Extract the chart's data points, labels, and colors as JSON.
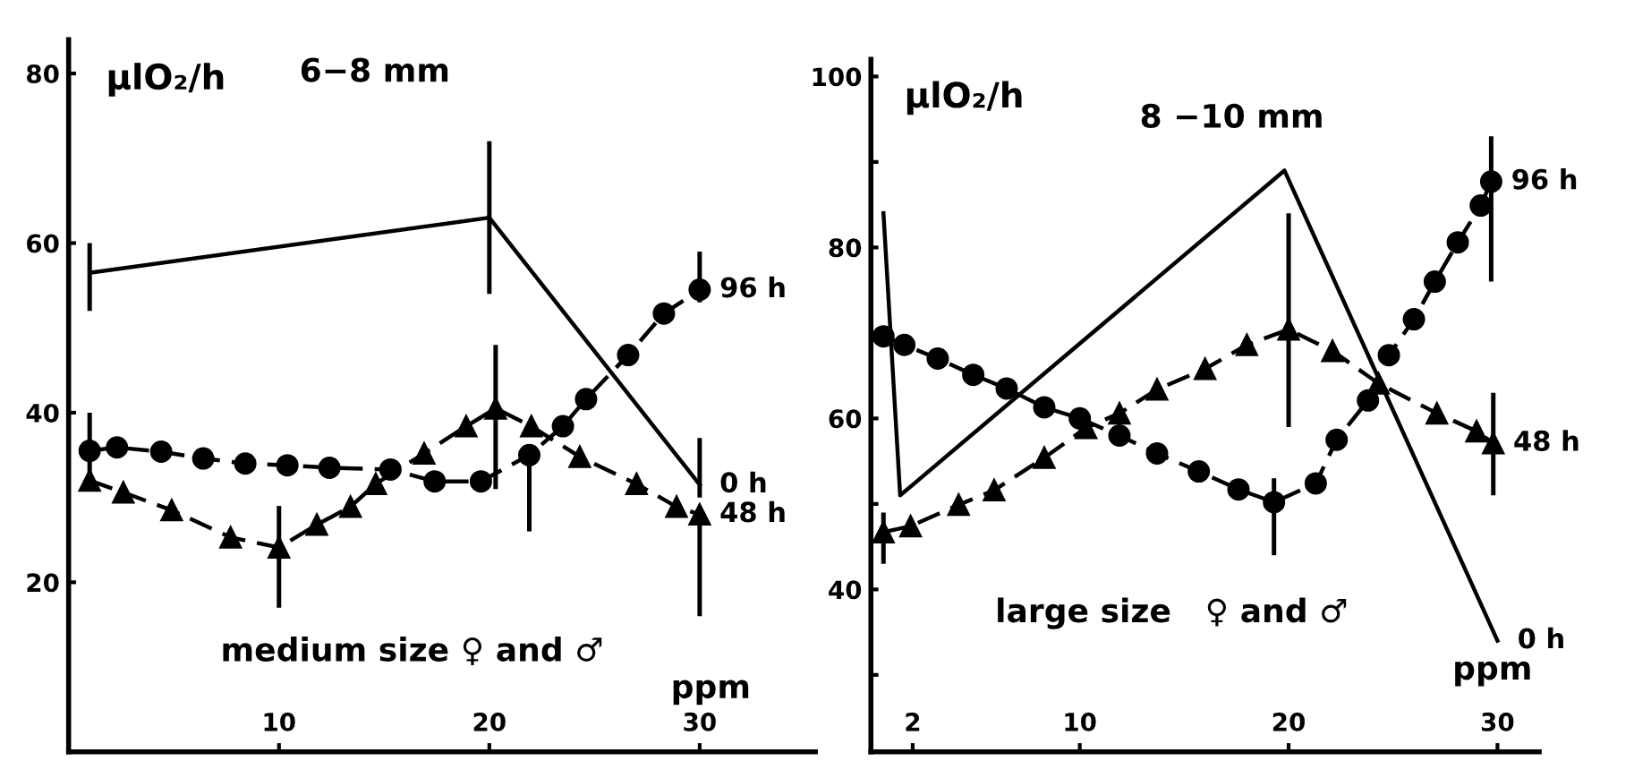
{
  "chart_data": [
    {
      "type": "line",
      "title": "6−8 mm",
      "ylabel": "µlO₂/h",
      "xlabel": "ppm",
      "annotations": [
        "medium size ♀ and ♂"
      ],
      "xlim": [
        0,
        35.5
      ],
      "ylim": [
        0,
        84
      ],
      "xticks": [
        10,
        20,
        30
      ],
      "yticks": [
        20,
        40,
        60,
        80
      ],
      "grid": false,
      "legend": false,
      "series": [
        {
          "name": "0 h",
          "color": "#000000",
          "marker": "none",
          "line_style": "solid",
          "x": [
            1,
            20,
            30
          ],
          "values": [
            56.5,
            63,
            31.5
          ],
          "errors": [
            [
              52,
              60
            ],
            [
              54,
              72
            ],
            [
              30,
              37
            ]
          ]
        },
        {
          "name": "96 h",
          "color": "#000000",
          "marker": "circle",
          "line_style": "dashed",
          "x": [
            1,
            2.3,
            4.4,
            6.4,
            8.4,
            10.4,
            12.4,
            15.3,
            17.4,
            19.6,
            21.9,
            23.5,
            24.6,
            26.6,
            28.3,
            30
          ],
          "values": [
            35.5,
            35.9,
            35.4,
            34.6,
            34,
            33.8,
            33.5,
            33.3,
            31.9,
            31.9,
            35,
            38.4,
            41.6,
            46.8,
            51.7,
            54.5
          ],
          "errors": [
            [
              32,
              40
            ],
            null,
            null,
            null,
            null,
            null,
            null,
            null,
            null,
            null,
            [
              26,
              36
            ],
            null,
            null,
            null,
            null,
            [
              53,
              59
            ]
          ]
        },
        {
          "name": "48 h",
          "color": "#000000",
          "marker": "triangle",
          "line_style": "dashed",
          "x": [
            1,
            2.6,
            4.9,
            7.7,
            10,
            11.8,
            13.4,
            14.6,
            16.9,
            18.9,
            20.3,
            22,
            24.3,
            27,
            28.9,
            30
          ],
          "values": [
            32,
            30.6,
            28.5,
            25.3,
            24.1,
            26.8,
            28.9,
            31.6,
            35.2,
            38.4,
            40.5,
            38.4,
            34.8,
            31.6,
            28.9,
            28
          ],
          "errors": [
            null,
            null,
            null,
            null,
            [
              17,
              29
            ],
            null,
            null,
            null,
            null,
            null,
            [
              31,
              48
            ],
            null,
            null,
            null,
            null,
            [
              16,
              28
            ]
          ]
        }
      ]
    },
    {
      "type": "line",
      "title": "8 −10 mm",
      "ylabel": "µlO₂/h",
      "xlabel": "ppm",
      "annotations": [
        "large size   ♀ and ♂"
      ],
      "xlim": [
        0,
        32
      ],
      "ylim": [
        21,
        102
      ],
      "xticks": [
        2,
        10,
        20,
        30
      ],
      "yticks": [
        {
          "value": 30,
          "label": null
        },
        40,
        {
          "value": 50,
          "label": null
        },
        60,
        {
          "value": 70,
          "label": null
        },
        80,
        {
          "value": 90,
          "label": null
        },
        100
      ],
      "grid": false,
      "legend": false,
      "series": [
        {
          "name": "0 h",
          "color": "#000000",
          "marker": "none",
          "line_style": "solid",
          "x": [
            0.6,
            1.4,
            19.8,
            30
          ],
          "values": [
            84,
            51,
            89,
            34
          ]
        },
        {
          "name": "96 h",
          "color": "#000000",
          "marker": "circle",
          "line_style": "dashed",
          "x": [
            0.6,
            1.6,
            3.2,
            4.9,
            6.5,
            8.3,
            10,
            11.9,
            13.7,
            15.7,
            17.6,
            19.3,
            21.3,
            22.3,
            23.8,
            24.8,
            26,
            27,
            28.1,
            29.2,
            29.7
          ],
          "values": [
            69.6,
            68.6,
            67,
            65.1,
            63.5,
            61.3,
            60,
            58,
            55.9,
            53.8,
            51.7,
            50.2,
            52.4,
            57.5,
            62.1,
            67.4,
            71.6,
            76,
            80.6,
            84.9,
            87.7
          ],
          "errors": [
            null,
            null,
            null,
            null,
            null,
            null,
            null,
            null,
            null,
            null,
            null,
            [
              44,
              53
            ],
            null,
            null,
            null,
            null,
            null,
            null,
            null,
            null,
            [
              76,
              93
            ]
          ]
        },
        {
          "name": "48 h",
          "color": "#000000",
          "marker": "triangle",
          "line_style": "dashed",
          "x": [
            0.6,
            1.9,
            4.2,
            5.9,
            8.3,
            10.3,
            11.9,
            13.7,
            16,
            18,
            20,
            22.1,
            24.3,
            27.1,
            29,
            29.8
          ],
          "values": [
            46.7,
            47.4,
            49.9,
            51.6,
            55.4,
            58.9,
            60.6,
            63.4,
            65.8,
            68.6,
            70.4,
            67.9,
            64.1,
            60.6,
            58.5,
            57.1
          ],
          "errors": [
            [
              43,
              49
            ],
            null,
            null,
            null,
            null,
            null,
            null,
            null,
            null,
            null,
            [
              59,
              84
            ],
            null,
            null,
            null,
            null,
            [
              51,
              63
            ]
          ]
        }
      ]
    }
  ]
}
